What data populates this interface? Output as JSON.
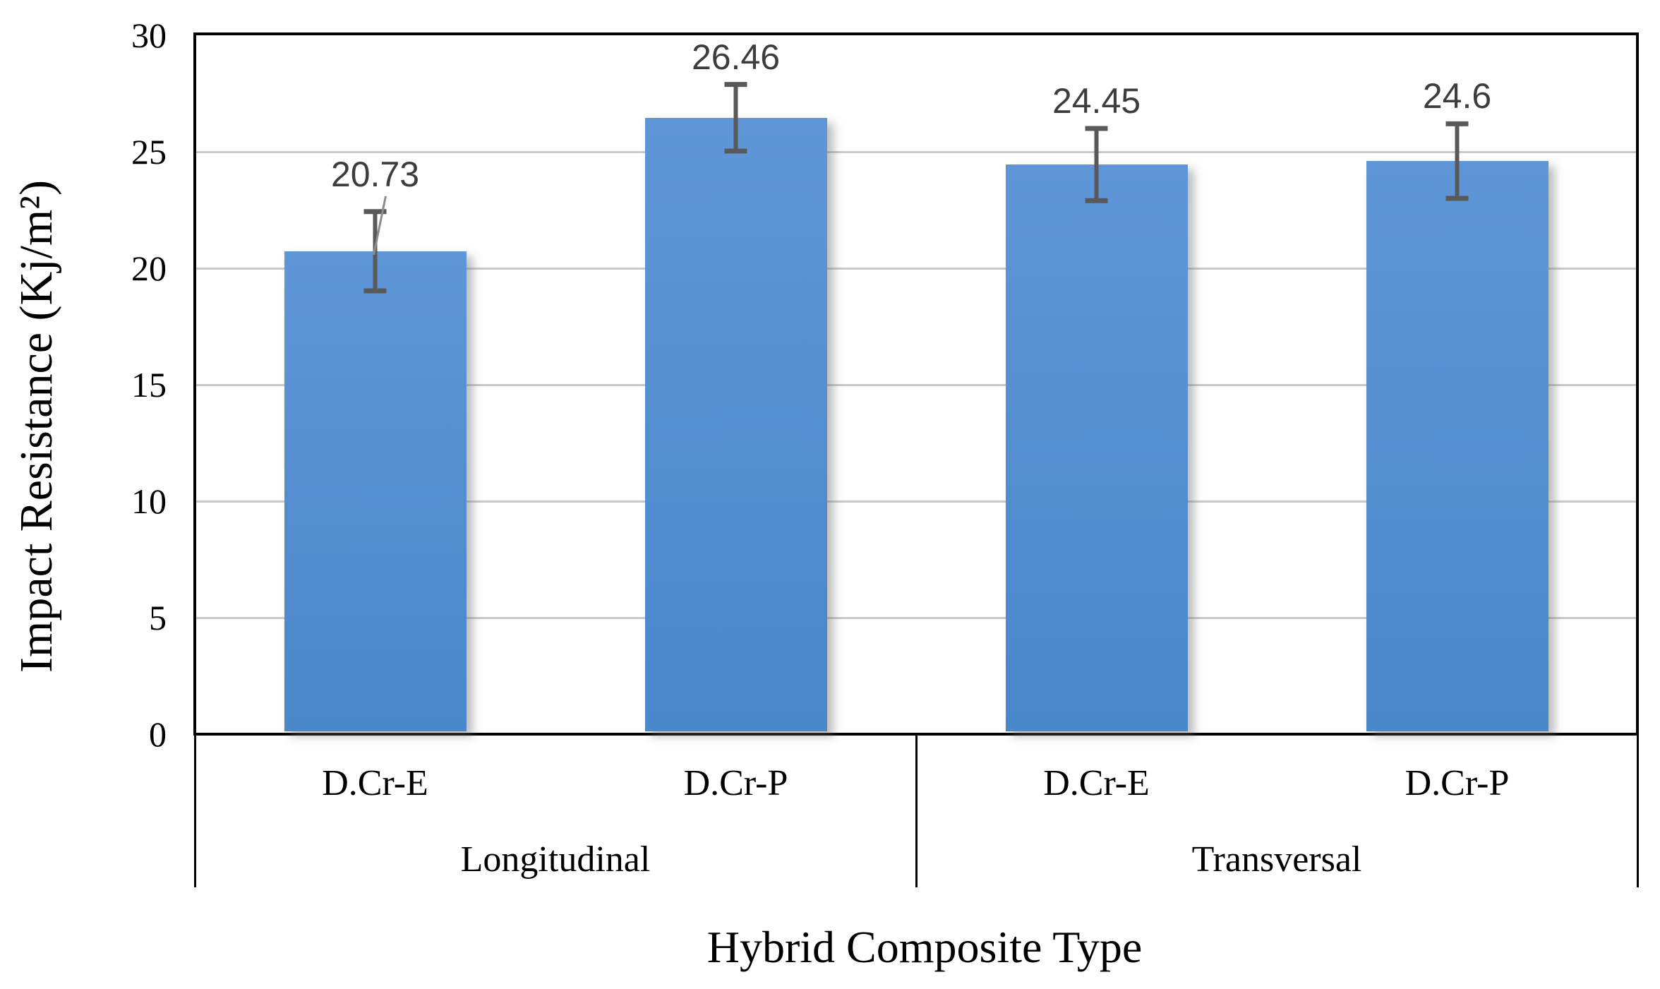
{
  "chart_data": {
    "type": "bar",
    "title": "",
    "xlabel": "Hybrid Composite Type",
    "ylabel": "Impact Resistance (Kj/m²)",
    "categories": [
      "D.Cr-E",
      "D.Cr-P",
      "D.Cr-E",
      "D.Cr-P"
    ],
    "groups": [
      {
        "label": "Longitudinal",
        "span": [
          0,
          1
        ]
      },
      {
        "label": "Transversal",
        "span": [
          2,
          3
        ]
      }
    ],
    "values": [
      20.73,
      26.46,
      24.45,
      24.6
    ],
    "value_labels": [
      "20.73",
      "26.46",
      "24.45",
      "24.6"
    ],
    "error_bars_plus_minus": [
      1.7,
      1.43,
      1.55,
      1.6
    ],
    "label_leader_line_bar_index": 0,
    "ylim": [
      0,
      30
    ],
    "yticks": [
      0,
      5,
      10,
      15,
      20,
      25,
      30
    ],
    "grid": "horizontal",
    "legend": "none",
    "colors": {
      "bar_fill_top": "#5E96D8",
      "bar_fill_bottom": "#4A87CB",
      "error_bar": "#595959",
      "leader_line": "#8C8C8C",
      "gridline": "#C9C9C9",
      "axis_frame": "#000000",
      "axis_text": "#000000",
      "data_label": "#3D3D3D",
      "background": "#FFFFFF"
    }
  }
}
